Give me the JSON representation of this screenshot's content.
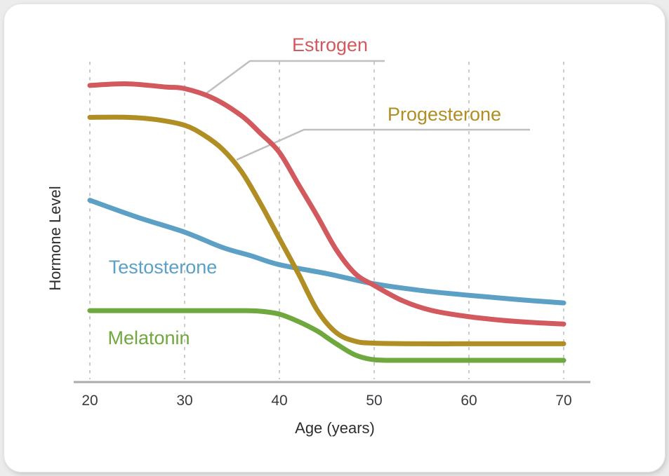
{
  "page": {
    "background_color": "#ECECEC",
    "card_background_color": "#FFFFFF"
  },
  "chart_data": {
    "type": "line",
    "title": "",
    "xlabel": "Age (years)",
    "ylabel": "Hormone Level",
    "xlim": [
      20,
      70
    ],
    "ylim": [
      0,
      100
    ],
    "x_ticks": [
      20,
      30,
      40,
      50,
      60,
      70
    ],
    "grid": "vertical dashed gridlines at each x tick, no horizontal gridlines, no y tick values",
    "legend_position": "inline colored labels; Estrogen and Progesterone use gray leader lines to their curves",
    "axis_color": "#ABABAB",
    "gridline_color": "#CBCBCB",
    "leader_line_color": "#BFBFBF",
    "series": [
      {
        "name": "Estrogen",
        "color": "#D2595D",
        "points": [
          [
            20,
            93
          ],
          [
            24,
            93.5
          ],
          [
            28,
            92.5
          ],
          [
            30,
            92
          ],
          [
            33,
            89
          ],
          [
            36,
            83.5
          ],
          [
            38,
            78
          ],
          [
            40,
            72
          ],
          [
            42,
            62
          ],
          [
            44,
            52
          ],
          [
            46,
            41.5
          ],
          [
            48,
            34
          ],
          [
            50,
            30.3
          ],
          [
            53,
            25.5
          ],
          [
            56,
            22.5
          ],
          [
            60,
            20.5
          ],
          [
            65,
            19
          ],
          [
            70,
            18.2
          ]
        ]
      },
      {
        "name": "Progesterone",
        "color": "#B08E23",
        "points": [
          [
            20,
            83
          ],
          [
            24,
            83
          ],
          [
            27,
            82.3
          ],
          [
            30,
            80.5
          ],
          [
            32,
            77.5
          ],
          [
            34,
            73
          ],
          [
            36,
            66
          ],
          [
            38,
            56
          ],
          [
            40,
            45
          ],
          [
            42,
            34
          ],
          [
            44,
            22.5
          ],
          [
            46,
            15.5
          ],
          [
            48,
            12.8
          ],
          [
            50,
            12.2
          ],
          [
            55,
            12
          ],
          [
            60,
            12
          ],
          [
            65,
            12
          ],
          [
            70,
            12
          ]
        ]
      },
      {
        "name": "Testosterone",
        "color": "#5CA0C6",
        "points": [
          [
            20,
            57
          ],
          [
            25,
            51.7
          ],
          [
            30,
            47
          ],
          [
            34,
            42.2
          ],
          [
            37,
            39.6
          ],
          [
            40,
            36.8
          ],
          [
            45,
            34
          ],
          [
            50,
            30.8
          ],
          [
            55,
            28.7
          ],
          [
            60,
            27.2
          ],
          [
            65,
            25.9
          ],
          [
            70,
            24.8
          ]
        ]
      },
      {
        "name": "Melatonin",
        "color": "#6FA83E",
        "points": [
          [
            20,
            22.4
          ],
          [
            30,
            22.4
          ],
          [
            36,
            22.4
          ],
          [
            38,
            22.2
          ],
          [
            40,
            21.3
          ],
          [
            42,
            19
          ],
          [
            44,
            16
          ],
          [
            45,
            14
          ],
          [
            46,
            12
          ],
          [
            48,
            8.5
          ],
          [
            50,
            7
          ],
          [
            53,
            6.8
          ],
          [
            60,
            6.8
          ],
          [
            70,
            6.8
          ]
        ]
      }
    ]
  }
}
